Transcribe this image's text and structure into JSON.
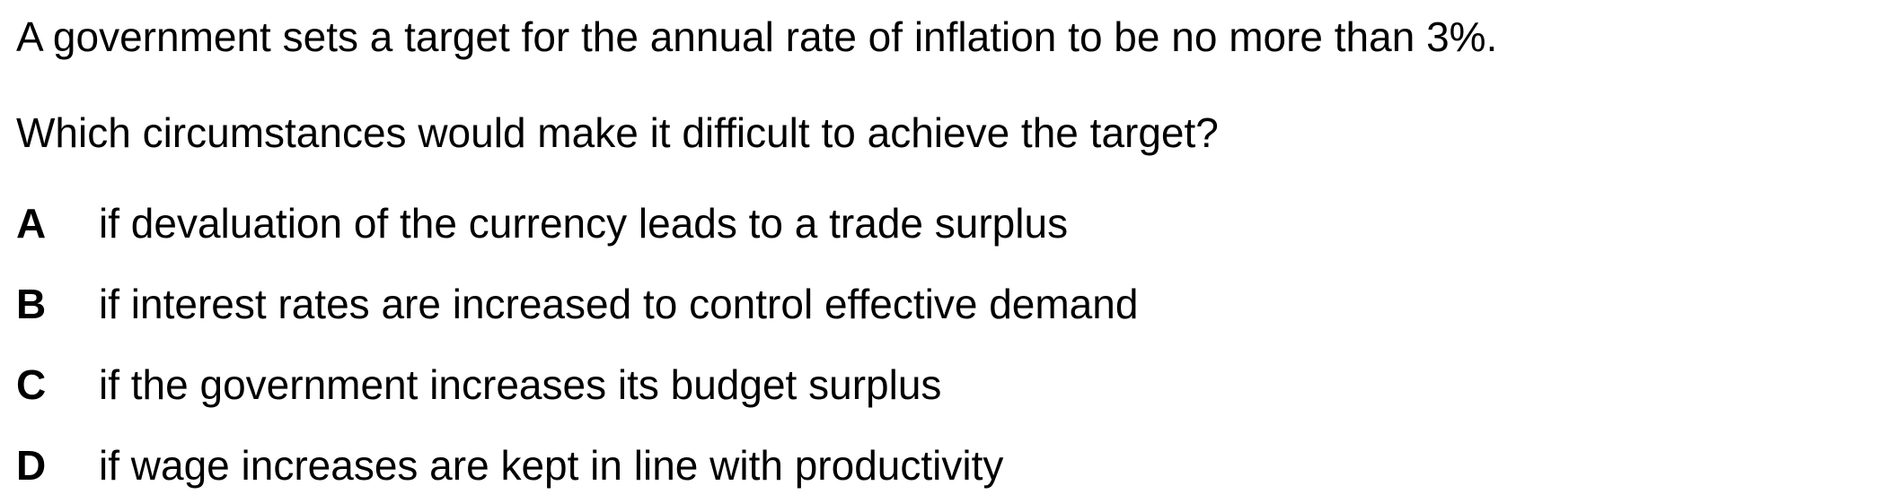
{
  "stem": "A government sets a target for the annual rate of inflation to be no more than 3%.",
  "question": "Which circumstances would make it difficult to achieve the target?",
  "options": [
    {
      "letter": "A",
      "text": "if devaluation of the currency leads to a trade surplus"
    },
    {
      "letter": "B",
      "text": "if interest rates are increased to control effective demand"
    },
    {
      "letter": "C",
      "text": "if the government increases its budget surplus"
    },
    {
      "letter": "D",
      "text": "if wage increases are kept in line with productivity"
    }
  ]
}
